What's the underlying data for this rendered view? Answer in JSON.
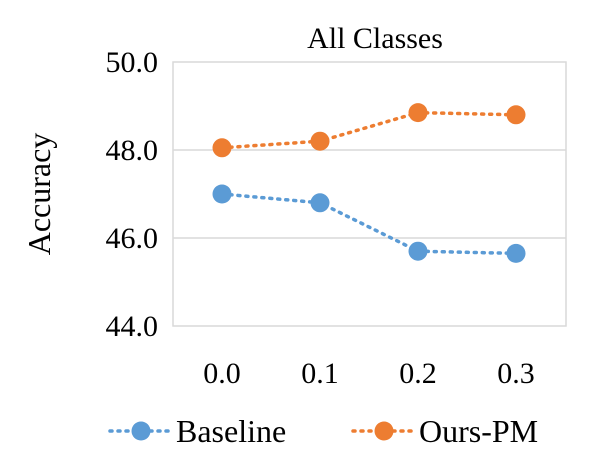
{
  "chart_data": {
    "type": "line",
    "title": "All Classes",
    "ylabel": "Accuracy",
    "xlabel": "",
    "categories": [
      "0.0",
      "0.1",
      "0.2",
      "0.3"
    ],
    "ylim": [
      44.0,
      50.0
    ],
    "yticks": [
      "44.0",
      "46.0",
      "48.0",
      "50.0"
    ],
    "grid": true,
    "legend_position": "bottom",
    "series": [
      {
        "name": "Baseline",
        "color": "#5b9bd5",
        "values": [
          47.0,
          46.8,
          45.7,
          45.65
        ]
      },
      {
        "name": "Ours-PM",
        "color": "#ed7d31",
        "values": [
          48.05,
          48.2,
          48.85,
          48.8
        ]
      }
    ]
  }
}
